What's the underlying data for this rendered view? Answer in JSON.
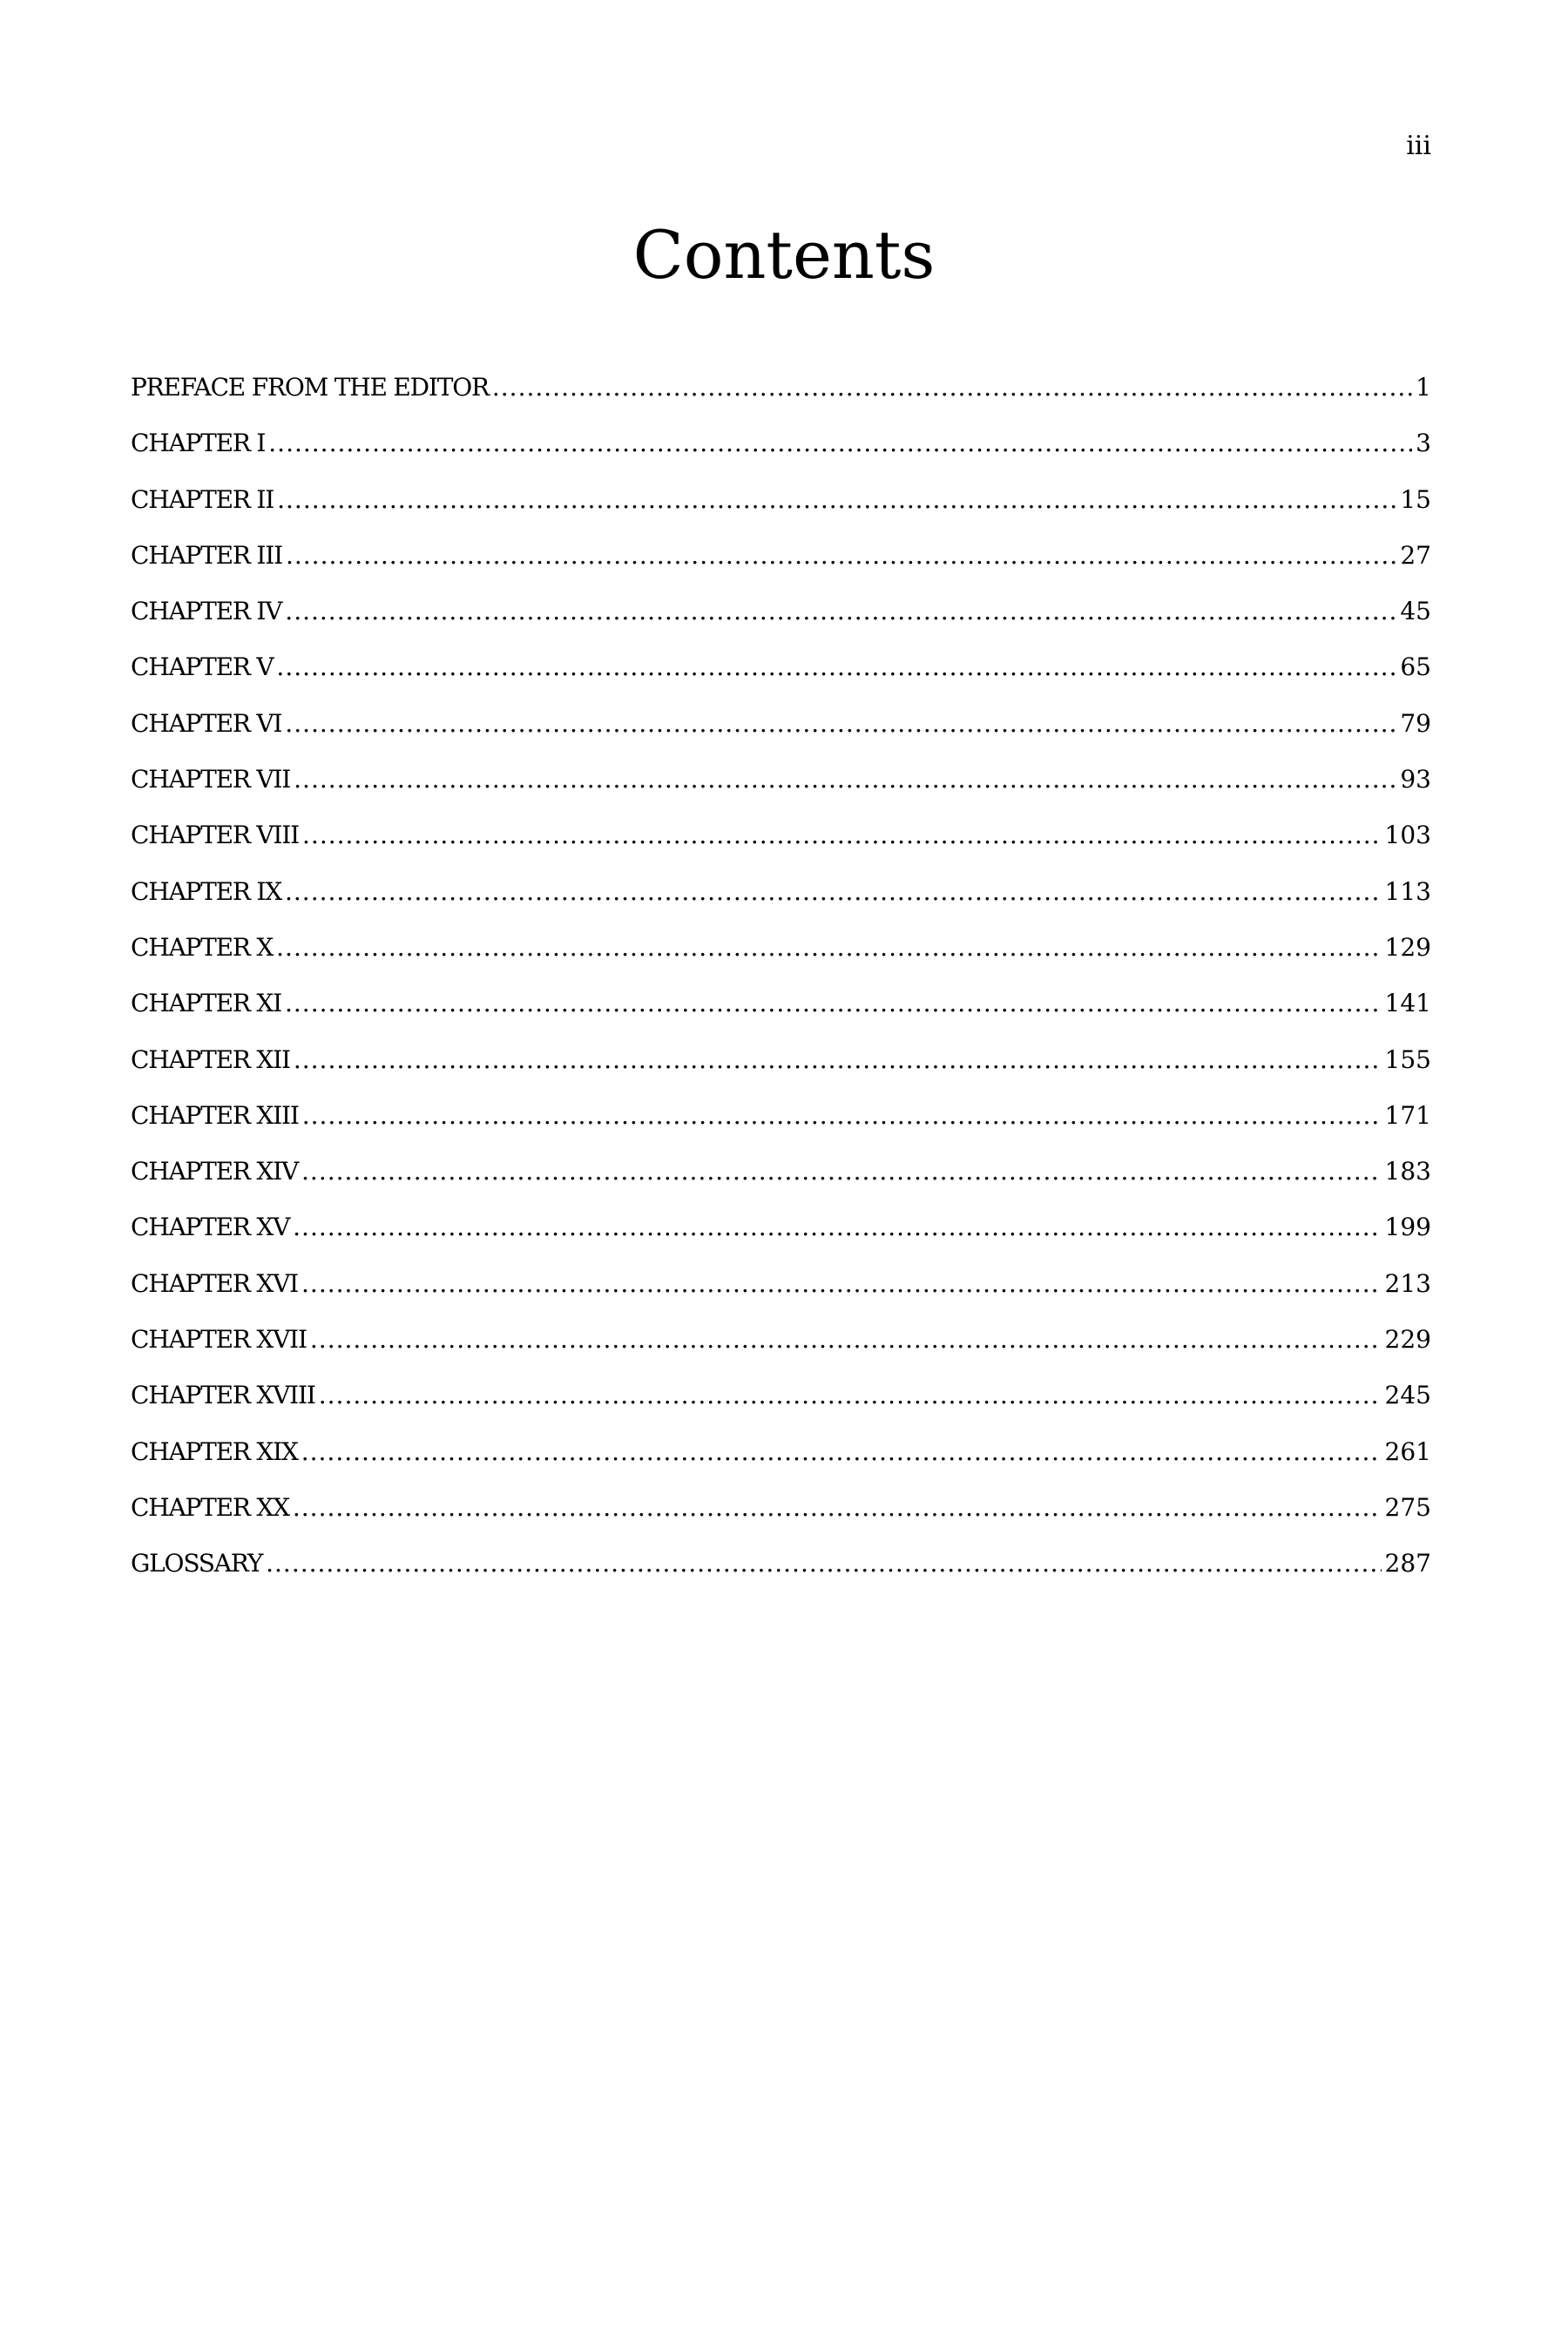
{
  "page_number": "iii",
  "title": "Contents",
  "entries": [
    {
      "label": "PREFACE FROM THE EDITOR",
      "page": "1"
    },
    {
      "label": "CHAPTER I",
      "page": "3"
    },
    {
      "label": "CHAPTER II",
      "page": "15"
    },
    {
      "label": "CHAPTER III",
      "page": "27"
    },
    {
      "label": "CHAPTER IV",
      "page": "45"
    },
    {
      "label": "CHAPTER V",
      "page": "65"
    },
    {
      "label": "CHAPTER VI",
      "page": "79"
    },
    {
      "label": "CHAPTER VII",
      "page": "93"
    },
    {
      "label": "CHAPTER VIII",
      "page": "103"
    },
    {
      "label": "CHAPTER IX",
      "page": "113"
    },
    {
      "label": "CHAPTER X",
      "page": "129"
    },
    {
      "label": "CHAPTER XI",
      "page": "141"
    },
    {
      "label": "CHAPTER XII",
      "page": "155"
    },
    {
      "label": "CHAPTER XIII",
      "page": "171"
    },
    {
      "label": "CHAPTER XIV",
      "page": "183"
    },
    {
      "label": "CHAPTER XV",
      "page": "199"
    },
    {
      "label": "CHAPTER XVI",
      "page": "213"
    },
    {
      "label": "CHAPTER XVII",
      "page": "229"
    },
    {
      "label": "CHAPTER XVIII",
      "page": "245"
    },
    {
      "label": "CHAPTER XIX",
      "page": "261"
    },
    {
      "label": "CHAPTER XX",
      "page": "275"
    },
    {
      "label": "GLOSSARY",
      "page": "287"
    }
  ]
}
